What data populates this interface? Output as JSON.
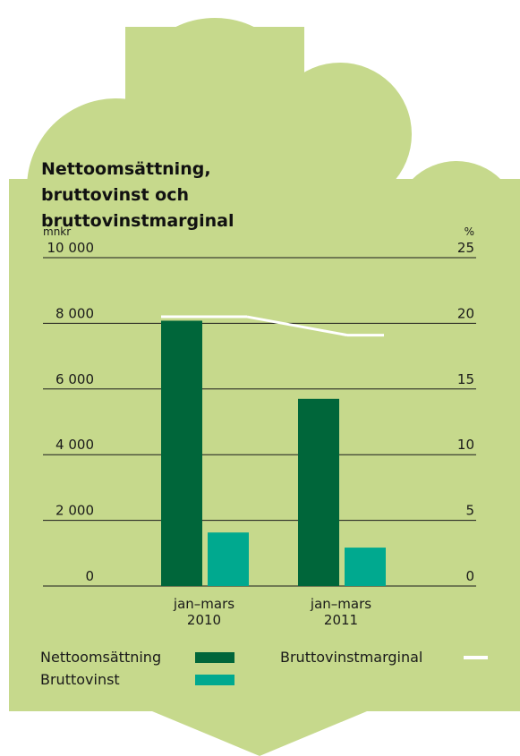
{
  "chart_data": {
    "type": "bar",
    "title": "Nettoomsättning, bruttovinst och bruttovinstmarginal",
    "y_label": "mnkr",
    "y2_label": "%",
    "categories": [
      "jan–mars 2010",
      "jan–mars 2011"
    ],
    "series": [
      {
        "name": "Nettoomsättning",
        "color": "#00663a",
        "values": [
          8080,
          5700
        ]
      },
      {
        "name": "Bruttovinst",
        "color": "#00a98f",
        "values": [
          1630,
          1170
        ]
      },
      {
        "name": "Bruttovinstmarginal",
        "color": "#ffffff",
        "values": [
          20.5,
          19.1
        ],
        "axis": "y2",
        "type": "line"
      }
    ],
    "ylim": [
      0,
      10000
    ],
    "yticks": [
      {
        "value": 0,
        "label": "0"
      },
      {
        "value": 2000,
        "label": "2 000"
      },
      {
        "value": 4000,
        "label": "4 000"
      },
      {
        "value": 6000,
        "label": "6 000"
      },
      {
        "value": 8000,
        "label": "8 000"
      },
      {
        "value": 10000,
        "label": "10 000"
      }
    ],
    "y2lim": [
      0,
      25
    ],
    "y2ticks": [
      0,
      5,
      10,
      15,
      20,
      25
    ],
    "grid": true
  }
}
